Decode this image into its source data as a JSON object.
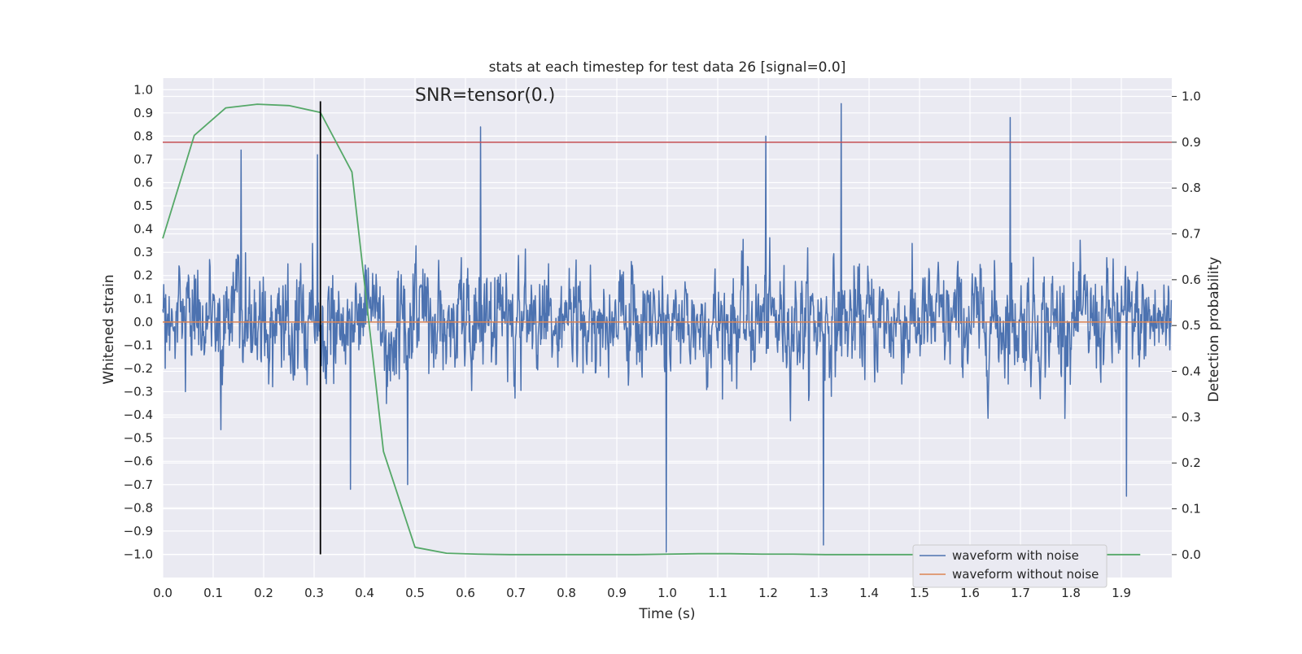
{
  "chart_data": {
    "type": "line",
    "title": "stats at each timestep for test data 26 [signal=0.0]",
    "xlabel": "Time (s)",
    "ylabel": "Whitened strain",
    "y2label": "Detection probability",
    "annotation": "SNR=tensor(0.)",
    "xlim": [
      0.0,
      2.0
    ],
    "ylim": [
      -1.1,
      1.05
    ],
    "y2lim": [
      -0.05,
      1.04
    ],
    "xticks": [
      "0.0",
      "0.1",
      "0.2",
      "0.3",
      "0.4",
      "0.5",
      "0.6",
      "0.7",
      "0.8",
      "0.9",
      "1.0",
      "1.1",
      "1.2",
      "1.3",
      "1.4",
      "1.5",
      "1.6",
      "1.7",
      "1.8",
      "1.9"
    ],
    "yticks": [
      "1.0",
      "0.9",
      "0.8",
      "0.7",
      "0.6",
      "0.5",
      "0.4",
      "0.3",
      "0.2",
      "0.1",
      "0.0",
      "−0.1",
      "−0.2",
      "−0.3",
      "−0.4",
      "−0.5",
      "−0.6",
      "−0.7",
      "−0.8",
      "−0.9",
      "−1.0"
    ],
    "y2ticks": [
      "1.0",
      "0.9",
      "0.8",
      "0.7",
      "0.6",
      "0.5",
      "0.4",
      "0.3",
      "0.2",
      "0.1",
      "0.0"
    ],
    "grid": true,
    "legend_position": "lower-right",
    "colors": {
      "noise": "#4c72b0",
      "clean": "#dd8452",
      "probability": "#55a868",
      "threshold": "#c44e52",
      "marker": "#000000",
      "axes_bg": "#eaeaf2",
      "grid": "#ffffff"
    },
    "series": [
      {
        "name": "waveform with noise",
        "style": "noisy strain, approx. 2048 samples over 0–2 s, amplitude mostly within ±0.5",
        "notable_spikes": [
          {
            "x": 0.155,
            "y": 0.74
          },
          {
            "x": 0.307,
            "y": 0.72
          },
          {
            "x": 0.63,
            "y": 0.84
          },
          {
            "x": 1.195,
            "y": 0.8
          },
          {
            "x": 1.345,
            "y": 0.94
          },
          {
            "x": 1.68,
            "y": 0.88
          },
          {
            "x": 0.485,
            "y": -0.7
          },
          {
            "x": 0.998,
            "y": -0.99
          },
          {
            "x": 1.31,
            "y": -0.96
          },
          {
            "x": 1.91,
            "y": -0.75
          },
          {
            "x": 0.372,
            "y": -0.72
          }
        ]
      },
      {
        "name": "waveform without noise",
        "x": [
          0.0,
          2.0
        ],
        "y": [
          0.0,
          0.0
        ]
      },
      {
        "axis": "right",
        "x": [
          0.0,
          0.0625,
          0.125,
          0.1875,
          0.25,
          0.3125,
          0.375,
          0.4375,
          0.5,
          0.5625,
          0.625,
          0.6875,
          0.75,
          0.8125,
          0.875,
          0.9375,
          1.0,
          1.0625,
          1.125,
          1.1875,
          1.25,
          1.3125,
          1.375,
          1.4375,
          1.5,
          1.5625,
          1.625,
          1.6875,
          1.75,
          1.8125,
          1.875,
          1.9375
        ],
        "y": [
          0.69,
          0.915,
          0.975,
          0.983,
          0.98,
          0.965,
          0.835,
          0.225,
          0.016,
          0.003,
          0.001,
          0.0,
          0.0,
          0.0,
          0.0,
          0.0,
          0.001,
          0.002,
          0.002,
          0.001,
          0.001,
          0.0,
          0.0,
          0.0,
          0.0,
          0.0,
          0.0,
          0.0,
          0.0,
          0.0,
          0.0,
          0.0
        ]
      }
    ],
    "threshold": {
      "axis": "right",
      "y": 0.9
    },
    "marker_line": {
      "x": 0.3125,
      "y_range": [
        -1.0,
        0.95
      ]
    },
    "legend": [
      "waveform with noise",
      "waveform without noise"
    ]
  }
}
